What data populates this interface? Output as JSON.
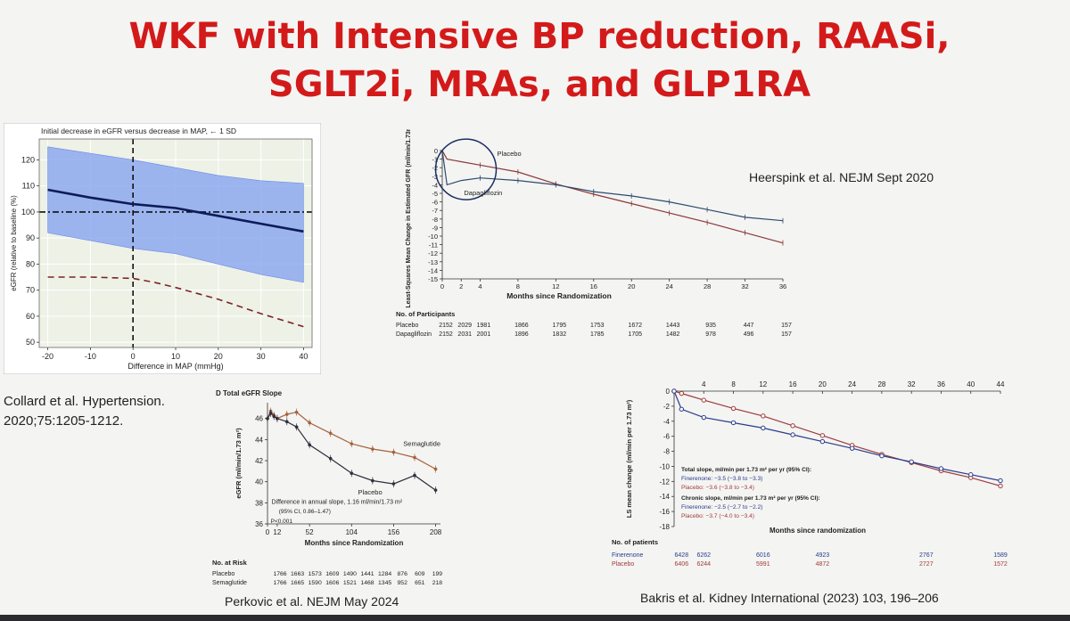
{
  "slide": {
    "title_line1": "WKF with Intensive BP reduction, RAASi,",
    "title_line2": "SGLT2i, MRAs,  and GLP1RA",
    "citation_collard_1": "Collard et al. Hypertension.",
    "citation_collard_2": "2020;75:1205-1212.",
    "citation_heerspink": "Heerspink et al. NEJM Sept 2020",
    "citation_perkovic": "Perkovic et al. NEJM May 2024",
    "citation_bakris": "Bakris et al. Kidney International (2023) 103, 196–206"
  },
  "colors": {
    "title": "#d31a1a",
    "band": "#7f9ff0",
    "navy": "#0d1b59",
    "placebo_red": "#9c3b3b",
    "semaglutide": "#a4623c",
    "finerenone_blue": "#2a3c8c"
  },
  "chart_data": [
    {
      "type": "line",
      "title": "Initial decrease in eGFR versus decrease in MAP, ← 1 SD",
      "xlabel": "Difference in MAP (mmHg)",
      "ylabel": "eGFR (relative to baseline (%)",
      "xlim": [
        -22,
        42
      ],
      "ylim": [
        48,
        128
      ],
      "xticks": [
        -20,
        -10,
        0,
        10,
        20,
        30,
        40
      ],
      "yticks": [
        50,
        60,
        70,
        80,
        90,
        100,
        110,
        120
      ],
      "band": {
        "x": [
          -20,
          0,
          10,
          20,
          30,
          40
        ],
        "upper": [
          125,
          120,
          117,
          114,
          112,
          111
        ],
        "lower": [
          92,
          86,
          84,
          80,
          76,
          73
        ]
      },
      "series": [
        {
          "name": "estimate",
          "x": [
            -20,
            -10,
            0,
            10,
            20,
            30,
            40
          ],
          "y": [
            108.5,
            105.5,
            103,
            101.5,
            98.5,
            95.5,
            92.5
          ]
        },
        {
          "name": "lower threshold",
          "x": [
            -20,
            -10,
            0,
            5,
            10,
            20,
            30,
            40
          ],
          "y": [
            75,
            75,
            74.5,
            73,
            71,
            66.5,
            61,
            56
          ]
        }
      ],
      "reference_lines": {
        "x": 0,
        "y": 100
      }
    },
    {
      "type": "line",
      "title": "",
      "xlabel": "Months since Randomization",
      "ylabel": "Least-Squares Mean Change in Estimated GFR (ml/min/1.73m²)",
      "xlim": [
        0,
        36
      ],
      "ylim": [
        -15,
        0
      ],
      "xticks": [
        0,
        2,
        4,
        8,
        12,
        16,
        20,
        24,
        28,
        32,
        36
      ],
      "yticks": [
        0,
        -1,
        -2,
        -3,
        -4,
        -5,
        -6,
        -7,
        -8,
        -9,
        -10,
        -11,
        -12,
        -13,
        -14,
        -15
      ],
      "series": [
        {
          "name": "Placebo",
          "x": [
            0,
            0.5,
            2,
            4,
            8,
            12,
            16,
            20,
            24,
            28,
            32,
            36
          ],
          "y": [
            0,
            -1,
            -1.3,
            -1.7,
            -2.5,
            -3.9,
            -5.1,
            -6.2,
            -7.3,
            -8.4,
            -9.6,
            -10.8
          ]
        },
        {
          "name": "Dapagliflozin",
          "x": [
            0,
            0.5,
            2,
            4,
            8,
            12,
            16,
            20,
            24,
            28,
            32,
            36
          ],
          "y": [
            0,
            -4,
            -3.5,
            -3.2,
            -3.5,
            -4,
            -4.8,
            -5.3,
            -6,
            -6.9,
            -7.8,
            -8.2
          ]
        }
      ],
      "label_placebo": "Placebo",
      "label_dapa": "Dapagliflozin",
      "risk_title": "No. of Participants",
      "risk_rows": [
        {
          "label": "Placebo",
          "values": [
            "2152",
            "2029",
            "1981",
            "1866",
            "1795",
            "1753",
            "1672",
            "1443",
            "935",
            "447",
            "157"
          ]
        },
        {
          "label": "Dapagliflozin",
          "values": [
            "2152",
            "2031",
            "2001",
            "1896",
            "1832",
            "1785",
            "1705",
            "1482",
            "978",
            "496",
            "157"
          ]
        }
      ]
    },
    {
      "type": "line",
      "title": "D  Total eGFR Slope",
      "xlabel": "Months since Randomization",
      "ylabel": "eGFR (ml/min/1.73 m²)",
      "xlim": [
        0,
        214
      ],
      "ylim": [
        36,
        47.5
      ],
      "xticks": [
        0,
        12,
        52,
        104,
        156,
        208
      ],
      "yticks": [
        36,
        38,
        40,
        42,
        44,
        46
      ],
      "series": [
        {
          "name": "Semaglutide",
          "x": [
            0,
            4,
            8,
            12,
            24,
            36,
            52,
            78,
            104,
            130,
            156,
            182,
            208
          ],
          "y": [
            46,
            46.7,
            46.3,
            46,
            46.4,
            46.6,
            45.6,
            44.6,
            43.6,
            43.1,
            42.8,
            42.3,
            41.2
          ]
        },
        {
          "name": "Placebo",
          "x": [
            0,
            4,
            8,
            12,
            24,
            36,
            52,
            78,
            104,
            130,
            156,
            182,
            208
          ],
          "y": [
            46,
            46.5,
            46.2,
            46,
            45.7,
            45.2,
            43.5,
            42.2,
            40.8,
            40.1,
            39.8,
            40.6,
            39.2
          ]
        }
      ],
      "label_semaglutide": "Semaglutide",
      "label_placebo": "Placebo",
      "annotation_1": "Difference in annual slope, 1.16 ml/min/1.73 m²",
      "annotation_2": "(95% CI, 0.86–1.47)",
      "annotation_3": "P<0.001",
      "risk_title": "No. at Risk",
      "risk_rows": [
        {
          "label": "Placebo",
          "values": [
            "1766",
            "1663",
            "1573",
            "1609",
            "1490",
            "1441",
            "1284",
            "876",
            "609",
            "199"
          ]
        },
        {
          "label": "Semaglutide",
          "values": [
            "1766",
            "1665",
            "1590",
            "1606",
            "1521",
            "1468",
            "1345",
            "952",
            "651",
            "218"
          ]
        }
      ]
    },
    {
      "type": "line",
      "title": "",
      "xlabel": "Months since randomization",
      "ylabel": "LS mean change (ml/min per 1.73 m²)",
      "xlim": [
        0,
        44
      ],
      "ylim": [
        -18,
        0
      ],
      "xticks": [
        4,
        8,
        12,
        16,
        20,
        24,
        28,
        32,
        36,
        40,
        44
      ],
      "yticks": [
        0,
        -2,
        -4,
        -6,
        -8,
        -10,
        -12,
        -14,
        -16,
        -18
      ],
      "series": [
        {
          "name": "Placebo",
          "x": [
            0,
            1,
            4,
            8,
            12,
            16,
            20,
            24,
            28,
            32,
            36,
            40,
            44
          ],
          "y": [
            0,
            -0.3,
            -1.2,
            -2.3,
            -3.3,
            -4.6,
            -5.9,
            -7.2,
            -8.4,
            -9.5,
            -10.6,
            -11.5,
            -12.6
          ]
        },
        {
          "name": "Finerenone",
          "x": [
            0,
            1,
            4,
            8,
            12,
            16,
            20,
            24,
            28,
            32,
            36,
            40,
            44
          ],
          "y": [
            0,
            -2.4,
            -3.5,
            -4.2,
            -4.9,
            -5.8,
            -6.7,
            -7.6,
            -8.6,
            -9.4,
            -10.3,
            -11.1,
            -11.9
          ]
        }
      ],
      "total_slope_title": "Total slope, ml/min per 1.73 m² per yr (95% CI):",
      "total_fin": "Finerenone: −3.5 (−3.8 to −3.3)",
      "total_plc": "Placebo: −3.6 (−3.8 to −3.4)",
      "chronic_slope_title": "Chronic slope, ml/min per 1.73 m² per yr (95% CI):",
      "chronic_fin": "Finerenone: −2.5 (−2.7 to −2.2)",
      "chronic_plc": "Placebo: −3.7 (−4.0 to −3.4)",
      "risk_title": "No. of patients",
      "risk_rows": [
        {
          "label": "Finerenone",
          "values": [
            "6428",
            "6262",
            "6016",
            "4923",
            "2767",
            "1589"
          ]
        },
        {
          "label": "Placebo",
          "values": [
            "6406",
            "6244",
            "5991",
            "4872",
            "2727",
            "1572"
          ]
        }
      ]
    }
  ]
}
